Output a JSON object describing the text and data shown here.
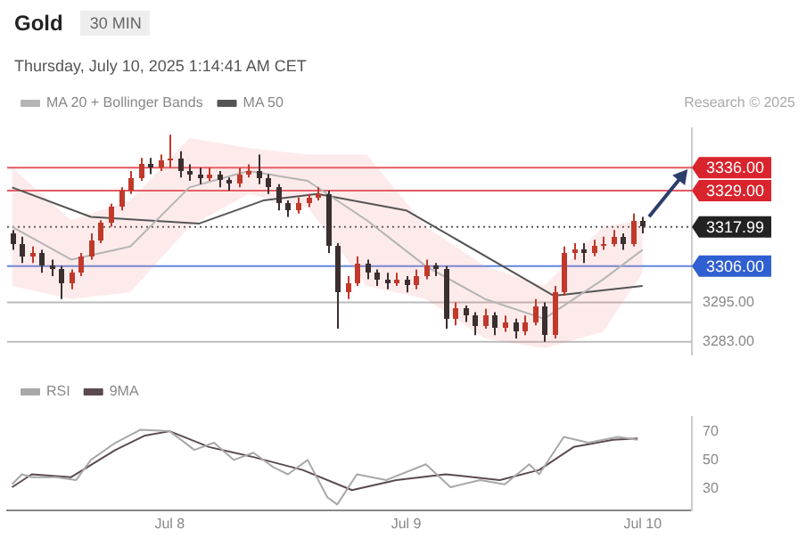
{
  "chart_data": [
    {
      "type": "candlestick",
      "title": "Gold",
      "subtitle": "Thursday, July 10, 2025 1:14:41 AM CET",
      "annotations": [
        "30 MIN",
        "Research © 2025"
      ],
      "xlim": [
        "2025-07-07T07:30",
        "2025-07-10T05:00"
      ],
      "ylim": [
        3279,
        3348
      ],
      "yticks": [
        {
          "value": 3283,
          "label": "3283.00"
        },
        {
          "value": 3295,
          "label": "3295.00"
        }
      ],
      "tick_labels": "y",
      "grid": "y",
      "legend": "top left",
      "ref_lines": [
        {
          "axis": "y",
          "value": 3336,
          "label": "3336.00",
          "color": "#d9232d"
        },
        {
          "axis": "y",
          "value": 3329,
          "label": "3329.00",
          "color": "#d9232d"
        },
        {
          "axis": "y",
          "value": 3317.99,
          "label": "3317.99",
          "color": "#222222",
          "line_style": "dotted"
        },
        {
          "axis": "y",
          "value": 3306,
          "label": "3306.00",
          "color": "#2f5fd0"
        }
      ],
      "series": [
        {
          "type": "candlestick",
          "colors": [
            "#3b2f2f",
            "#3b2f2f",
            "#c0392b",
            "#3b2f2f",
            "#3b2f2f",
            "#3b2f2f",
            "#c0392b",
            "#c0392b",
            "#c0392b",
            "#c0392b",
            "#c0392b",
            "#c0392b",
            "#c0392b",
            "#c0392b",
            "#3b2f2f",
            "#c0392b",
            "#c0392b",
            "#3b2f2f",
            "#3b2f2f",
            "#3b2f2f",
            "#c0392b",
            "#3b2f2f",
            "#3b2f2f",
            "#c0392b",
            "#c0392b",
            "#3b2f2f",
            "#3b2f2f",
            "#3b2f2f",
            "#3b2f2f",
            "#c0392b",
            "#c0392b",
            "#c0392b",
            "#3b2f2f",
            "#3b2f2f",
            "#c0392b",
            "#c0392b",
            "#3b2f2f",
            "#3b2f2f",
            "#3b2f2f",
            "#c0392b",
            "#3b2f2f",
            "#c0392b",
            "#c0392b",
            "#3b2f2f",
            "#3b2f2f",
            "#c0392b",
            "#3b2f2f",
            "#3b2f2f",
            "#c0392b",
            "#3b2f2f",
            "#c0392b",
            "#3b2f2f",
            "#c0392b",
            "#c0392b",
            "#3b2f2f",
            "#c0392b",
            "#c0392b",
            "#c0392b",
            "#3b2f2f",
            "#c0392b",
            "#c0392b",
            "#c0392b",
            "#3b2f2f",
            "#c0392b",
            "#3b2f2f"
          ],
          "x": [
            "2025-07-07T08:00",
            "2025-07-07T09:00",
            "2025-07-07T10:00",
            "2025-07-07T11:00",
            "2025-07-07T12:00",
            "2025-07-07T13:00",
            "2025-07-07T14:00",
            "2025-07-07T15:00",
            "2025-07-07T16:00",
            "2025-07-07T17:00",
            "2025-07-07T18:00",
            "2025-07-07T19:00",
            "2025-07-07T20:00",
            "2025-07-07T21:00",
            "2025-07-07T22:00",
            "2025-07-07T23:00",
            "2025-07-08T00:00",
            "2025-07-08T01:00",
            "2025-07-08T02:00",
            "2025-07-08T03:00",
            "2025-07-08T04:00",
            "2025-07-08T05:00",
            "2025-07-08T06:00",
            "2025-07-08T07:00",
            "2025-07-08T08:00",
            "2025-07-08T09:00",
            "2025-07-08T10:00",
            "2025-07-08T11:00",
            "2025-07-08T12:00",
            "2025-07-08T13:00",
            "2025-07-08T14:00",
            "2025-07-08T15:00",
            "2025-07-08T16:00",
            "2025-07-08T17:00",
            "2025-07-08T18:00",
            "2025-07-08T19:00",
            "2025-07-08T20:00",
            "2025-07-08T21:00",
            "2025-07-08T22:00",
            "2025-07-08T23:00",
            "2025-07-09T00:00",
            "2025-07-09T01:00",
            "2025-07-09T02:00",
            "2025-07-09T03:00",
            "2025-07-09T04:00",
            "2025-07-09T05:00",
            "2025-07-09T06:00",
            "2025-07-09T07:00",
            "2025-07-09T08:00",
            "2025-07-09T09:00",
            "2025-07-09T10:00",
            "2025-07-09T11:00",
            "2025-07-09T12:00",
            "2025-07-09T13:00",
            "2025-07-09T14:00",
            "2025-07-09T15:00",
            "2025-07-09T16:00",
            "2025-07-09T17:00",
            "2025-07-09T18:00",
            "2025-07-09T19:00",
            "2025-07-09T20:00",
            "2025-07-09T21:00",
            "2025-07-09T22:00",
            "2025-07-09T23:00",
            "2025-07-10T00:00"
          ],
          "ohlc": [
            [
              3316,
              3317,
              3311,
              3313
            ],
            [
              3313,
              3315,
              3307,
              3309
            ],
            [
              3309,
              3312,
              3307,
              3310
            ],
            [
              3310,
              3311,
              3304,
              3306
            ],
            [
              3306,
              3308,
              3303,
              3305
            ],
            [
              3305,
              3306,
              3296,
              3301
            ],
            [
              3301,
              3305,
              3299,
              3304
            ],
            [
              3304,
              3310,
              3303,
              3309
            ],
            [
              3309,
              3316,
              3308,
              3314
            ],
            [
              3314,
              3320,
              3313,
              3319
            ],
            [
              3319,
              3325,
              3318,
              3324
            ],
            [
              3324,
              3330,
              3323,
              3329
            ],
            [
              3329,
              3335,
              3328,
              3333
            ],
            [
              3333,
              3339,
              3332,
              3337
            ],
            [
              3337,
              3339,
              3334,
              3336
            ],
            [
              3336,
              3340,
              3335,
              3338
            ],
            [
              3338,
              3346,
              3336,
              3339
            ],
            [
              3339,
              3341,
              3333,
              3335
            ],
            [
              3335,
              3337,
              3332,
              3334
            ],
            [
              3334,
              3336,
              3331,
              3333
            ],
            [
              3333,
              3336,
              3332,
              3334
            ],
            [
              3334,
              3335,
              3330,
              3332
            ],
            [
              3332,
              3333,
              3329,
              3331
            ],
            [
              3331,
              3336,
              3330,
              3334
            ],
            [
              3334,
              3337,
              3333,
              3335
            ],
            [
              3335,
              3340,
              3331,
              3333
            ],
            [
              3333,
              3334,
              3328,
              3330
            ],
            [
              3330,
              3331,
              3323,
              3325
            ],
            [
              3325,
              3326,
              3321,
              3323
            ],
            [
              3323,
              3327,
              3322,
              3325
            ],
            [
              3325,
              3328,
              3324,
              3327
            ],
            [
              3327,
              3330,
              3326,
              3328
            ],
            [
              3328,
              3329,
              3310,
              3312
            ],
            [
              3312,
              3313,
              3287,
              3298
            ],
            [
              3298,
              3303,
              3296,
              3301
            ],
            [
              3301,
              3309,
              3300,
              3307
            ],
            [
              3307,
              3308,
              3302,
              3304
            ],
            [
              3304,
              3305,
              3300,
              3302
            ],
            [
              3302,
              3304,
              3299,
              3301
            ],
            [
              3301,
              3304,
              3300,
              3302
            ],
            [
              3302,
              3303,
              3298,
              3300
            ],
            [
              3300,
              3305,
              3299,
              3303
            ],
            [
              3303,
              3308,
              3302,
              3306
            ],
            [
              3306,
              3307,
              3303,
              3305
            ],
            [
              3305,
              3306,
              3287,
              3290
            ],
            [
              3290,
              3295,
              3288,
              3293
            ],
            [
              3293,
              3294,
              3289,
              3291
            ],
            [
              3291,
              3292,
              3285,
              3288
            ],
            [
              3288,
              3293,
              3287,
              3291
            ],
            [
              3291,
              3292,
              3285,
              3287
            ],
            [
              3287,
              3291,
              3286,
              3289
            ],
            [
              3289,
              3290,
              3284,
              3286
            ],
            [
              3286,
              3291,
              3285,
              3289
            ],
            [
              3289,
              3296,
              3288,
              3294
            ],
            [
              3294,
              3295,
              3283,
              3285
            ],
            [
              3285,
              3300,
              3284,
              3298
            ],
            [
              3298,
              3312,
              3297,
              3310
            ],
            [
              3310,
              3313,
              3308,
              3311
            ],
            [
              3311,
              3313,
              3307,
              3310
            ],
            [
              3310,
              3314,
              3309,
              3312
            ],
            [
              3312,
              3315,
              3311,
              3313
            ],
            [
              3313,
              3317,
              3312,
              3315
            ],
            [
              3315,
              3316,
              3311,
              3313
            ],
            [
              3313,
              3322,
              3312,
              3320
            ],
            [
              3320,
              3321,
              3316,
              3317.99
            ]
          ]
        },
        {
          "type": "line",
          "name": "MA 20 + Bollinger Bands",
          "color": "#b5b5b5",
          "x": [
            "2025-07-07T08:00",
            "2025-07-07T14:00",
            "2025-07-07T20:00",
            "2025-07-08T02:00",
            "2025-07-08T08:00",
            "2025-07-08T14:00",
            "2025-07-08T20:00",
            "2025-07-09T02:00",
            "2025-07-09T08:00",
            "2025-07-09T14:00",
            "2025-07-09T20:00",
            "2025-07-10T00:00"
          ],
          "values": [
            3318,
            3308,
            3312,
            3330,
            3335,
            3332,
            3320,
            3306,
            3296,
            3290,
            3302,
            3311
          ],
          "lower": [
            3300,
            3296,
            3298,
            3318,
            3328,
            3324,
            3300,
            3296,
            3284,
            3281,
            3286,
            3304
          ],
          "upper": [
            3336,
            3320,
            3326,
            3345,
            3342,
            3340,
            3340,
            3318,
            3306,
            3300,
            3318,
            3320
          ]
        },
        {
          "type": "line",
          "name": "MA 50",
          "color": "#555555",
          "x": [
            "2025-07-07T08:00",
            "2025-07-07T16:00",
            "2025-07-08T03:00",
            "2025-07-08T09:30",
            "2025-07-08T15:00",
            "2025-07-09T00:00",
            "2025-07-09T15:00",
            "2025-07-10T00:00"
          ],
          "values": [
            3330,
            3321,
            3319,
            3326,
            3328,
            3323,
            3297,
            3300
          ]
        }
      ]
    },
    {
      "type": "line",
      "xlim": [
        "2025-07-07T07:30",
        "2025-07-10T05:00"
      ],
      "xticks": [
        {
          "value": "2025-07-08",
          "label": "Jul 8"
        },
        {
          "value": "2025-07-09",
          "label": "Jul 9"
        },
        {
          "value": "2025-07-10",
          "label": "Jul 10"
        }
      ],
      "ylim": [
        15,
        80
      ],
      "yticks": [
        30,
        50,
        70
      ],
      "legend": "top left",
      "series": [
        {
          "name": "RSI",
          "color": "#a8a8a8",
          "x": [
            "2025-07-07T08:00",
            "2025-07-07T09:00",
            "2025-07-07T10:00",
            "2025-07-07T12:30",
            "2025-07-07T14:30",
            "2025-07-07T16:00",
            "2025-07-07T18:30",
            "2025-07-07T21:00",
            "2025-07-08T00:00",
            "2025-07-08T02:30",
            "2025-07-08T04:30",
            "2025-07-08T06:30",
            "2025-07-08T08:30",
            "2025-07-08T10:30",
            "2025-07-08T12:00",
            "2025-07-08T14:00",
            "2025-07-08T16:00",
            "2025-07-08T17:00",
            "2025-07-08T19:00",
            "2025-07-08T22:00",
            "2025-07-09T02:00",
            "2025-07-09T04:30",
            "2025-07-09T07:30",
            "2025-07-09T10:00",
            "2025-07-09T12:30",
            "2025-07-09T13:30",
            "2025-07-09T16:00",
            "2025-07-09T18:30",
            "2025-07-09T21:30",
            "2025-07-09T23:30"
          ],
          "values": [
            33,
            40,
            38,
            38,
            36,
            50,
            62,
            71,
            70,
            57,
            62,
            50,
            55,
            45,
            40,
            50,
            24,
            19,
            40,
            36,
            47,
            31,
            36,
            33,
            47,
            40,
            66,
            62,
            66,
            64
          ]
        },
        {
          "name": "9MA",
          "color": "#5a4a4e",
          "x": [
            "2025-07-07T08:00",
            "2025-07-07T10:00",
            "2025-07-07T14:00",
            "2025-07-07T18:30",
            "2025-07-07T21:30",
            "2025-07-08T00:00",
            "2025-07-08T04:00",
            "2025-07-08T08:30",
            "2025-07-08T13:30",
            "2025-07-08T18:30",
            "2025-07-08T23:00",
            "2025-07-09T04:00",
            "2025-07-09T09:30",
            "2025-07-09T13:30",
            "2025-07-09T17:00",
            "2025-07-09T21:00",
            "2025-07-09T23:30"
          ],
          "values": [
            31,
            40,
            38,
            57,
            67,
            70,
            59,
            52,
            43,
            29,
            36,
            40,
            36,
            43,
            59,
            64,
            65
          ]
        }
      ]
    }
  ]
}
